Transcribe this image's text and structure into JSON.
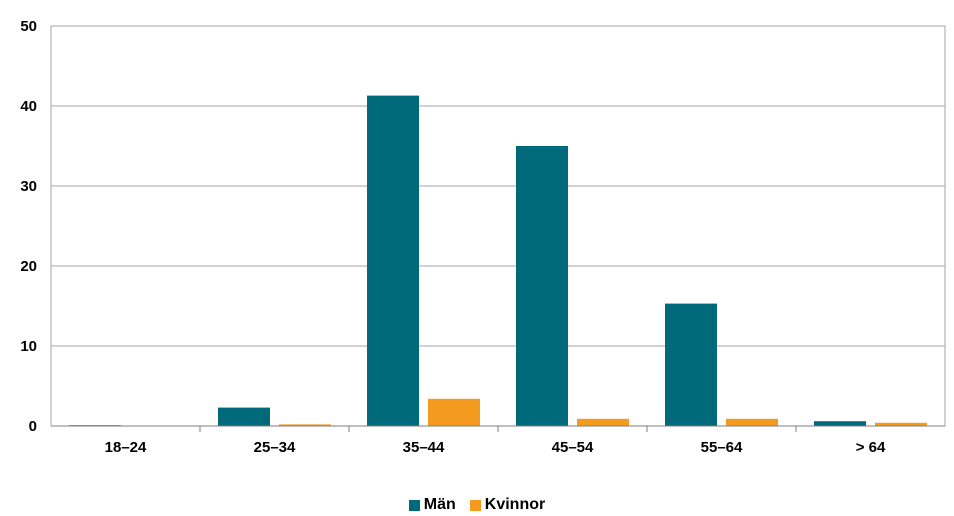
{
  "chart_data": {
    "type": "bar",
    "categories": [
      "18–24",
      "25–34",
      "35–44",
      "45–54",
      "55–64",
      "> 64"
    ],
    "series": [
      {
        "name": "Män",
        "color": "#006A7A",
        "values": [
          0.1,
          2.3,
          41.3,
          35.0,
          15.3,
          0.6
        ]
      },
      {
        "name": "Kvinnor",
        "color": "#F39A1F",
        "values": [
          0.0,
          0.2,
          3.4,
          0.9,
          0.9,
          0.4
        ]
      }
    ],
    "ylim": [
      0,
      50
    ],
    "yticks": [
      "0",
      "10",
      "20",
      "30",
      "40",
      "50"
    ],
    "grid": true,
    "legend_position": "bottom-center"
  }
}
